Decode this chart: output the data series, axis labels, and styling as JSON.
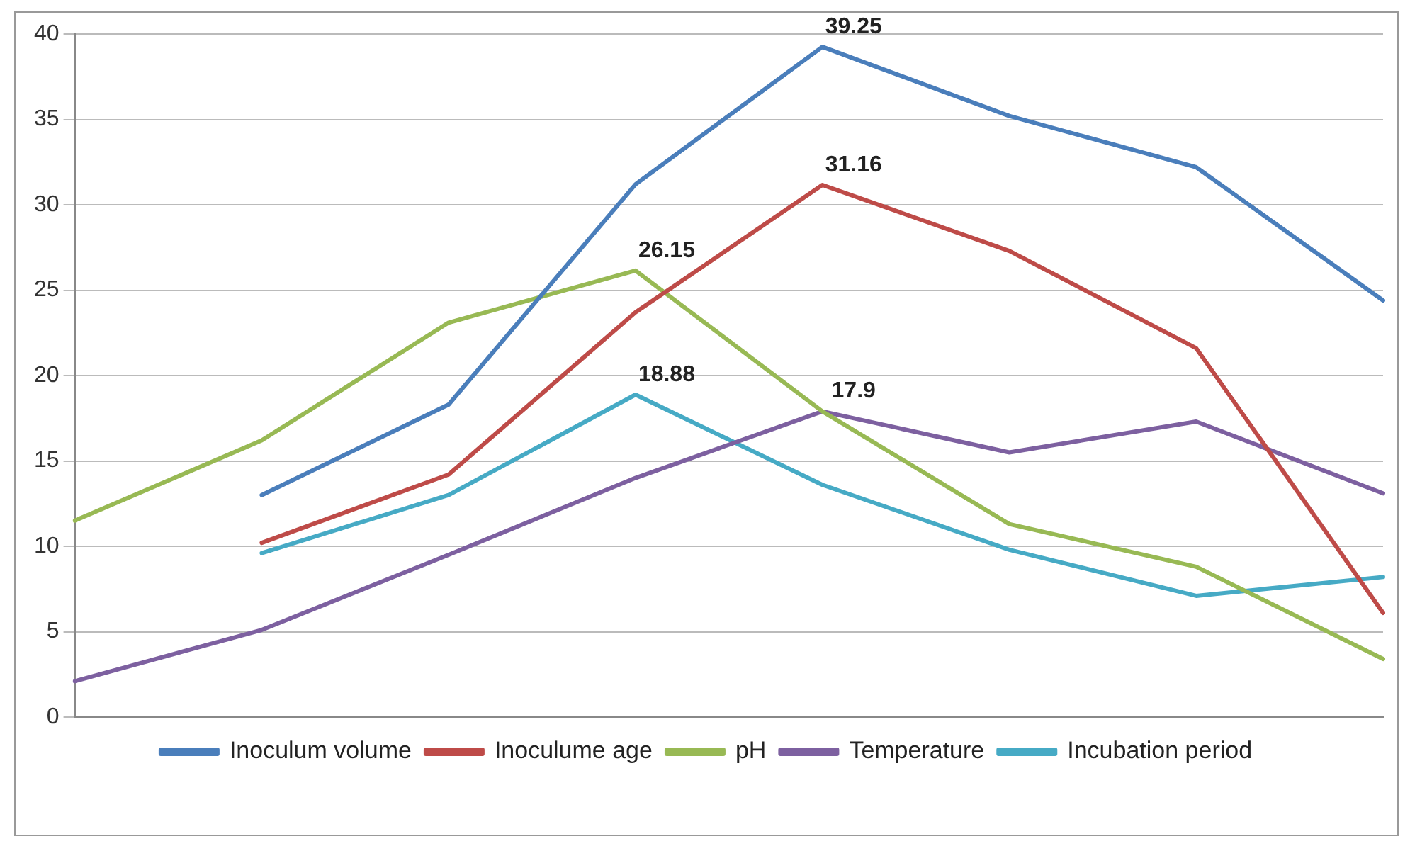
{
  "chart_data": {
    "type": "line",
    "categories": [
      null,
      null,
      null,
      null,
      null,
      null,
      null,
      null
    ],
    "series": [
      {
        "name": "Inoculum volume",
        "color": "#4a7ebb",
        "values": [
          null,
          13.0,
          18.3,
          31.2,
          39.25,
          35.2,
          32.2,
          24.4
        ],
        "value_labels": [
          null,
          null,
          null,
          null,
          "39.25",
          null,
          null,
          null
        ]
      },
      {
        "name": "Inoculume age",
        "color": "#be4b48",
        "values": [
          null,
          10.2,
          14.2,
          23.7,
          31.16,
          27.3,
          21.6,
          6.1
        ],
        "value_labels": [
          null,
          null,
          null,
          null,
          "31.16",
          null,
          null,
          null
        ]
      },
      {
        "name": "pH",
        "color": "#98b954",
        "values": [
          11.5,
          16.2,
          23.1,
          26.15,
          17.9,
          11.3,
          8.8,
          3.4
        ],
        "value_labels": [
          null,
          null,
          null,
          "26.15",
          null,
          null,
          null,
          null
        ]
      },
      {
        "name": "Temperature",
        "color": "#7d60a0",
        "values": [
          2.1,
          5.1,
          9.5,
          14.0,
          17.9,
          15.5,
          17.3,
          13.1
        ],
        "value_labels": [
          null,
          null,
          null,
          null,
          "17.9",
          null,
          null,
          null
        ]
      },
      {
        "name": "Incubation period",
        "color": "#46aac5",
        "values": [
          null,
          9.6,
          13.0,
          18.88,
          13.6,
          9.8,
          7.1,
          8.2
        ],
        "value_labels": [
          null,
          null,
          null,
          "18.88",
          null,
          null,
          null,
          null
        ]
      }
    ],
    "ylim": [
      0,
      40
    ],
    "yticks": [
      0,
      5,
      10,
      15,
      20,
      25,
      30,
      35,
      40
    ],
    "grid": "y",
    "legend": "bottom",
    "marker": "none",
    "line_style": "solid",
    "tick_labels": "y"
  }
}
